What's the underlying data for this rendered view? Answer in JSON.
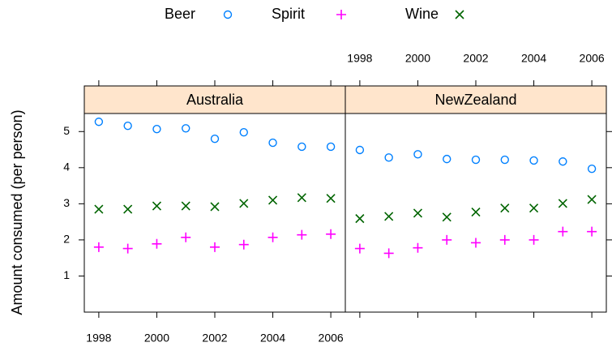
{
  "chart_data": {
    "type": "scatter",
    "ylabel": "Amount consumed (per person)",
    "x": [
      1998,
      1999,
      2000,
      2001,
      2002,
      2003,
      2004,
      2005,
      2006
    ],
    "xlim": [
      1997.5,
      2006.5
    ],
    "xticks": [
      1998,
      2000,
      2002,
      2004,
      2006
    ],
    "ylim": [
      0,
      5.5
    ],
    "yticks": [
      1,
      2,
      3,
      4,
      5
    ],
    "panels": [
      {
        "title": "Australia",
        "series": [
          {
            "name": "Beer",
            "color": "#0080ff",
            "marker": "circle",
            "values": [
              5.27,
              5.16,
              5.07,
              5.09,
              4.8,
              4.98,
              4.69,
              4.58,
              4.58
            ]
          },
          {
            "name": "Spirit",
            "color": "#ff00ff",
            "marker": "plus",
            "values": [
              1.8,
              1.76,
              1.89,
              2.07,
              1.8,
              1.87,
              2.07,
              2.14,
              2.16
            ]
          },
          {
            "name": "Wine",
            "color": "#006400",
            "marker": "cross",
            "values": [
              2.85,
              2.85,
              2.94,
              2.94,
              2.92,
              3.01,
              3.1,
              3.17,
              3.15
            ]
          }
        ]
      },
      {
        "title": "NewZealand",
        "series": [
          {
            "name": "Beer",
            "color": "#0080ff",
            "marker": "circle",
            "values": [
              4.49,
              4.28,
              4.37,
              4.24,
              4.22,
              4.22,
              4.2,
              4.17,
              3.97
            ]
          },
          {
            "name": "Spirit",
            "color": "#ff00ff",
            "marker": "plus",
            "values": [
              1.76,
              1.63,
              1.78,
              2.0,
              1.92,
              2.0,
              2.0,
              2.23,
              2.23
            ]
          },
          {
            "name": "Wine",
            "color": "#006400",
            "marker": "cross",
            "values": [
              2.59,
              2.65,
              2.74,
              2.63,
              2.77,
              2.88,
              2.88,
              3.01,
              3.12
            ]
          }
        ]
      }
    ]
  }
}
